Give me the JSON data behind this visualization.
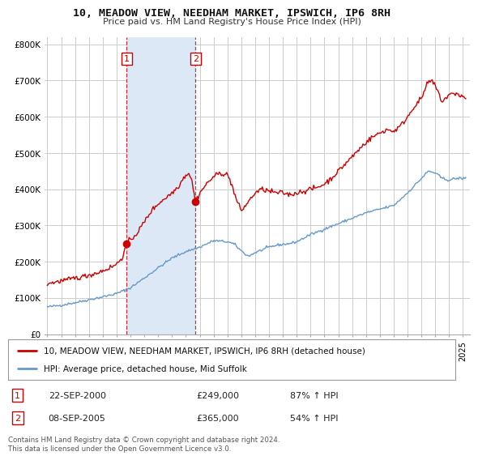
{
  "title": "10, MEADOW VIEW, NEEDHAM MARKET, IPSWICH, IP6 8RH",
  "subtitle": "Price paid vs. HM Land Registry's House Price Index (HPI)",
  "bg_color": "#ffffff",
  "plot_bg_color": "#ffffff",
  "grid_color": "#cccccc",
  "hpi_line_color": "#6699cc",
  "price_line_color": "#cc0000",
  "dashed_line_color": "#cc0000",
  "shade_color": "#dce8f5",
  "purchase1_date": "22-SEP-2000",
  "purchase1_price": 249000,
  "purchase1_hpi": "87% ↑ HPI",
  "purchase1_x": 2000.73,
  "purchase2_date": "08-SEP-2005",
  "purchase2_price": 365000,
  "purchase2_hpi": "54% ↑ HPI",
  "purchase2_x": 2005.69,
  "ylim": [
    0,
    820000
  ],
  "xlim_start": 1994.8,
  "xlim_end": 2025.5,
  "legend_label_price": "10, MEADOW VIEW, NEEDHAM MARKET, IPSWICH, IP6 8RH (detached house)",
  "legend_label_hpi": "HPI: Average price, detached house, Mid Suffolk",
  "footer": "Contains HM Land Registry data © Crown copyright and database right 2024.\nThis data is licensed under the Open Government Licence v3.0.",
  "yticks": [
    0,
    100000,
    200000,
    300000,
    400000,
    500000,
    600000,
    700000,
    800000
  ],
  "ytick_labels": [
    "£0",
    "£100K",
    "£200K",
    "£300K",
    "£400K",
    "£500K",
    "£600K",
    "£700K",
    "£800K"
  ]
}
